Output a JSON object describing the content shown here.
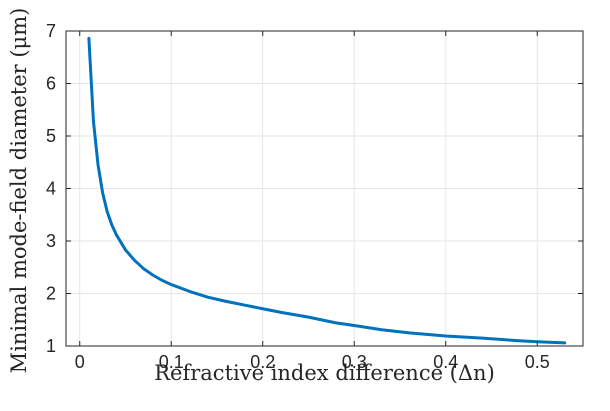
{
  "chart_data": {
    "type": "line",
    "title": "",
    "xlabel": "Refractive index difference (Δn)",
    "ylabel": "Minimal mode-field diameter (μm)",
    "xlim": [
      -0.015,
      0.55
    ],
    "ylim": [
      1,
      7
    ],
    "xticks": [
      0,
      0.1,
      0.2,
      0.3,
      0.4,
      0.5
    ],
    "xtick_labels": [
      "0",
      "0.1",
      "0.2",
      "0.3",
      "0.4",
      "0.5"
    ],
    "yticks": [
      1,
      2,
      3,
      4,
      5,
      6,
      7
    ],
    "ytick_labels": [
      "1",
      "2",
      "3",
      "4",
      "5",
      "6",
      "7"
    ],
    "grid": true,
    "series": [
      {
        "color": "#0072BD",
        "x": [
          0.01,
          0.015,
          0.02,
          0.025,
          0.03,
          0.035,
          0.04,
          0.05,
          0.06,
          0.07,
          0.08,
          0.09,
          0.1,
          0.12,
          0.14,
          0.16,
          0.18,
          0.2,
          0.22,
          0.25,
          0.28,
          0.3,
          0.33,
          0.36,
          0.4,
          0.44,
          0.48,
          0.5,
          0.53
        ],
        "y": [
          6.86,
          5.28,
          4.45,
          3.92,
          3.56,
          3.31,
          3.12,
          2.83,
          2.63,
          2.47,
          2.35,
          2.25,
          2.17,
          2.04,
          1.93,
          1.85,
          1.78,
          1.71,
          1.64,
          1.55,
          1.44,
          1.39,
          1.31,
          1.25,
          1.19,
          1.15,
          1.1,
          1.08,
          1.06
        ]
      }
    ]
  }
}
